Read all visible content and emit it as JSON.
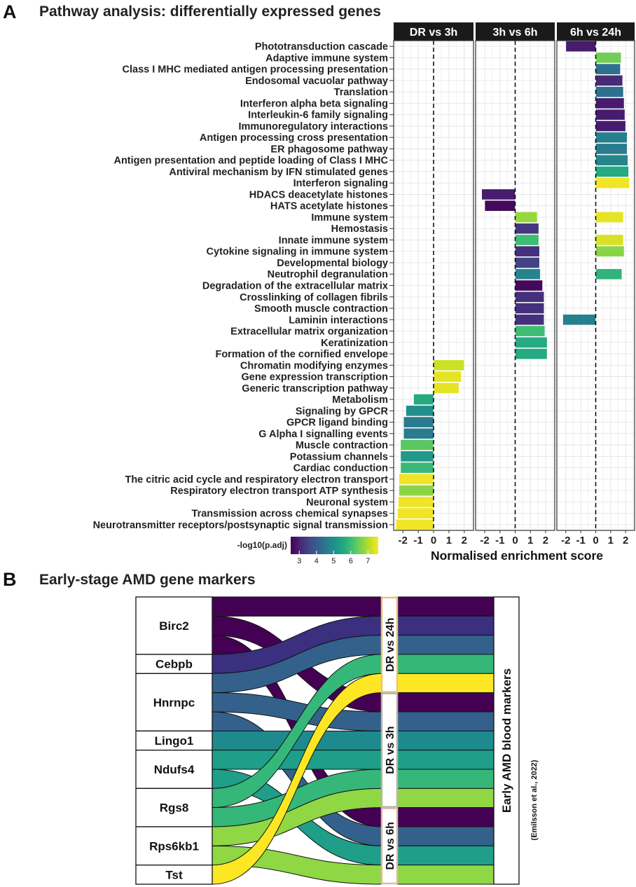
{
  "figure": {
    "panel_a_letter": "A",
    "panel_b_letter": "B",
    "panel_a_title": "Pathway analysis: differentially expressed genes",
    "panel_b_title": "Early-stage AMD gene markers"
  },
  "chart_data": [
    {
      "type": "bar",
      "orientation": "horizontal",
      "title": "Pathway analysis: differentially expressed genes",
      "xlabel": "Normalised enrichment score",
      "xlim": [
        -2.6,
        2.6
      ],
      "xticks": [
        -2,
        -1,
        0,
        1,
        2
      ],
      "xtick_labels": [
        "-2",
        "-1",
        "0",
        "1",
        "2"
      ],
      "facets": [
        "DR vs 3h",
        "3h vs 6h",
        "6h vs 24h"
      ],
      "legend": {
        "title": "-log10(p.adj)",
        "ticks": [
          3,
          4,
          5,
          6,
          7
        ],
        "range": [
          2.5,
          7.6
        ],
        "palette": "viridis"
      },
      "categories": [
        "Phototransduction cascade",
        "Adaptive immune system",
        "Class I MHC mediated antigen processing presentation",
        "Endosomal vacuolar pathway",
        "Translation",
        "Interferon alpha beta signaling",
        "Interleukin-6 family signaling",
        "Immunoregulatory interactions",
        "Antigen processing cross presentation",
        "ER phagosome pathway",
        "Antigen presentation and peptide loading of Class I MHC",
        "Antiviral mechanism by IFN stimulated genes",
        "Interferon signaling",
        "HDACS deacetylate histones",
        "HATS acetylate histones",
        "Immune system",
        "Hemostasis",
        "Innate immune system",
        "Cytokine signaling in immune system",
        "Developmental biology",
        "Neutrophil degranulation",
        "Degradation of the extracellular matrix",
        "Crosslinking of collagen fibrils",
        "Smooth muscle contraction",
        "Laminin interactions",
        "Extracellular matrix organization",
        "Keratinization",
        "Formation of the cornified envelope",
        "Chromatin modifying enzymes",
        "Gene expression transcription",
        "Generic transcription pathway",
        "Metabolism",
        "Signaling by GPCR",
        "GPCR ligand binding",
        "G Alpha I signalling events",
        "Muscle contraction",
        "Potassium channels",
        "Cardiac conduction",
        "The citric acid cycle and respiratory electron transport",
        "Respiratory electron transport ATP synthesis",
        "Neuronal system",
        "Transmission across chemical synapses",
        "Neurotransmitter receptors/postsynaptic signal transmission"
      ],
      "series": [
        {
          "name": "DR vs 3h",
          "bars": [
            {
              "category": "Chromatin modifying enzymes",
              "nes": 2.0,
              "neglog10_padj": 7.2
            },
            {
              "category": "Gene expression transcription",
              "nes": 1.8,
              "neglog10_padj": 7.4
            },
            {
              "category": "Generic transcription pathway",
              "nes": 1.65,
              "neglog10_padj": 7.4
            },
            {
              "category": "Metabolism",
              "nes": -1.3,
              "neglog10_padj": 5.6
            },
            {
              "category": "Signaling by GPCR",
              "nes": -1.8,
              "neglog10_padj": 5.0
            },
            {
              "category": "GPCR ligand binding",
              "nes": -1.95,
              "neglog10_padj": 4.6
            },
            {
              "category": "G Alpha I signalling events",
              "nes": -1.95,
              "neglog10_padj": 4.6
            },
            {
              "category": "Muscle contraction",
              "nes": -2.15,
              "neglog10_padj": 6.3
            },
            {
              "category": "Potassium channels",
              "nes": -2.15,
              "neglog10_padj": 5.2
            },
            {
              "category": "Cardiac conduction",
              "nes": -2.15,
              "neglog10_padj": 5.9
            },
            {
              "category": "The citric acid cycle and respiratory electron transport",
              "nes": -2.25,
              "neglog10_padj": 7.5
            },
            {
              "category": "Respiratory electron transport ATP synthesis",
              "nes": -2.25,
              "neglog10_padj": 6.7
            },
            {
              "category": "Neuronal system",
              "nes": -2.3,
              "neglog10_padj": 7.5
            },
            {
              "category": "Transmission across chemical synapses",
              "nes": -2.35,
              "neglog10_padj": 7.5
            },
            {
              "category": "Neurotransmitter receptors/postsynaptic signal transmission",
              "nes": -2.45,
              "neglog10_padj": 7.5
            }
          ]
        },
        {
          "name": "3h vs 6h",
          "bars": [
            {
              "category": "HDACS deacetylate histones",
              "nes": -2.2,
              "neglog10_padj": 2.9
            },
            {
              "category": "HATS acetylate histones",
              "nes": -2.0,
              "neglog10_padj": 2.6
            },
            {
              "category": "Immune system",
              "nes": 1.45,
              "neglog10_padj": 6.8
            },
            {
              "category": "Hemostasis",
              "nes": 1.55,
              "neglog10_padj": 3.3
            },
            {
              "category": "Innate immune system",
              "nes": 1.55,
              "neglog10_padj": 6.0
            },
            {
              "category": "Cytokine signaling in immune system",
              "nes": 1.6,
              "neglog10_padj": 3.2
            },
            {
              "category": "Developmental biology",
              "nes": 1.6,
              "neglog10_padj": 3.5
            },
            {
              "category": "Neutrophil degranulation",
              "nes": 1.65,
              "neglog10_padj": 4.8
            },
            {
              "category": "Degradation of the extracellular matrix",
              "nes": 1.8,
              "neglog10_padj": 2.6
            },
            {
              "category": "Crosslinking of collagen fibrils",
              "nes": 1.9,
              "neglog10_padj": 3.2
            },
            {
              "category": "Smooth muscle contraction",
              "nes": 1.9,
              "neglog10_padj": 3.2
            },
            {
              "category": "Laminin interactions",
              "nes": 1.9,
              "neglog10_padj": 3.2
            },
            {
              "category": "Extracellular matrix organization",
              "nes": 1.95,
              "neglog10_padj": 6.0
            },
            {
              "category": "Keratinization",
              "nes": 2.1,
              "neglog10_padj": 5.6
            },
            {
              "category": "Formation of the cornified envelope",
              "nes": 2.1,
              "neglog10_padj": 5.6
            }
          ]
        },
        {
          "name": "6h vs 24h",
          "bars": [
            {
              "category": "Phototransduction cascade",
              "nes": -2.0,
              "neglog10_padj": 2.9
            },
            {
              "category": "Adaptive immune system",
              "nes": 1.7,
              "neglog10_padj": 6.5
            },
            {
              "category": "Class I MHC mediated antigen processing presentation",
              "nes": 1.65,
              "neglog10_padj": 4.4
            },
            {
              "category": "Endosomal vacuolar pathway",
              "nes": 1.8,
              "neglog10_padj": 3.1
            },
            {
              "category": "Translation",
              "nes": 1.85,
              "neglog10_padj": 4.4
            },
            {
              "category": "Interferon alpha beta signaling",
              "nes": 1.9,
              "neglog10_padj": 2.9
            },
            {
              "category": "Interleukin-6 family signaling",
              "nes": 1.95,
              "neglog10_padj": 2.9
            },
            {
              "category": "Immunoregulatory interactions",
              "nes": 2.0,
              "neglog10_padj": 2.9
            },
            {
              "category": "Antigen processing cross presentation",
              "nes": 2.1,
              "neglog10_padj": 4.7
            },
            {
              "category": "ER phagosome pathway",
              "nes": 2.1,
              "neglog10_padj": 4.6
            },
            {
              "category": "Antigen presentation and peptide loading of Class I MHC",
              "nes": 2.15,
              "neglog10_padj": 4.8
            },
            {
              "category": "Antiviral mechanism by IFN stimulated genes",
              "nes": 2.2,
              "neglog10_padj": 5.6
            },
            {
              "category": "Interferon signaling",
              "nes": 2.25,
              "neglog10_padj": 7.5
            },
            {
              "category": "Immune system",
              "nes": 1.85,
              "neglog10_padj": 7.4
            },
            {
              "category": "Innate immune system",
              "nes": 1.85,
              "neglog10_padj": 7.3
            },
            {
              "category": "Cytokine signaling in immune system",
              "nes": 1.9,
              "neglog10_padj": 6.7
            },
            {
              "category": "Neutrophil degranulation",
              "nes": 1.75,
              "neglog10_padj": 5.8
            },
            {
              "category": "Laminin interactions",
              "nes": -2.2,
              "neglog10_padj": 4.7
            }
          ]
        }
      ]
    },
    {
      "type": "alluvial",
      "title": "Early-stage AMD gene markers",
      "left_axis": [
        "Birc2",
        "Cebpb",
        "Hnrnpc",
        "Lingo1",
        "Ndufs4",
        "Rgs8",
        "Rps6kb1",
        "Tst"
      ],
      "middle_axis": [
        "DR vs 24h",
        "DR vs 3h",
        "DR vs 6h"
      ],
      "right_axis_label": "Early AMD blood markers",
      "right_axis_citation": "(Emilsson et al., 2022)",
      "flows": [
        {
          "gene": "Birc2",
          "stage": "DR vs 24h"
        },
        {
          "gene": "Birc2",
          "stage": "DR vs 3h"
        },
        {
          "gene": "Birc2",
          "stage": "DR vs 6h"
        },
        {
          "gene": "Cebpb",
          "stage": "DR vs 24h"
        },
        {
          "gene": "Hnrnpc",
          "stage": "DR vs 24h"
        },
        {
          "gene": "Hnrnpc",
          "stage": "DR vs 3h"
        },
        {
          "gene": "Hnrnpc",
          "stage": "DR vs 6h"
        },
        {
          "gene": "Lingo1",
          "stage": "DR vs 3h"
        },
        {
          "gene": "Ndufs4",
          "stage": "DR vs 3h"
        },
        {
          "gene": "Ndufs4",
          "stage": "DR vs 6h"
        },
        {
          "gene": "Rgs8",
          "stage": "DR vs 24h"
        },
        {
          "gene": "Rgs8",
          "stage": "DR vs 3h"
        },
        {
          "gene": "Rps6kb1",
          "stage": "DR vs 3h"
        },
        {
          "gene": "Rps6kb1",
          "stage": "DR vs 6h"
        },
        {
          "gene": "Tst",
          "stage": "DR vs 24h"
        }
      ]
    }
  ],
  "colors": {
    "facet_strip": "#1a1a1a",
    "grid": "#e3e3e3",
    "birc2": "#440154",
    "cebpb": "#3b2f7f",
    "hnrnpc": "#33618c",
    "lingo1": "#1f8a8d",
    "ndufs4": "#1f9e89",
    "rgs8": "#35b779",
    "rps6kb1": "#8fd744",
    "tst": "#fde725"
  }
}
